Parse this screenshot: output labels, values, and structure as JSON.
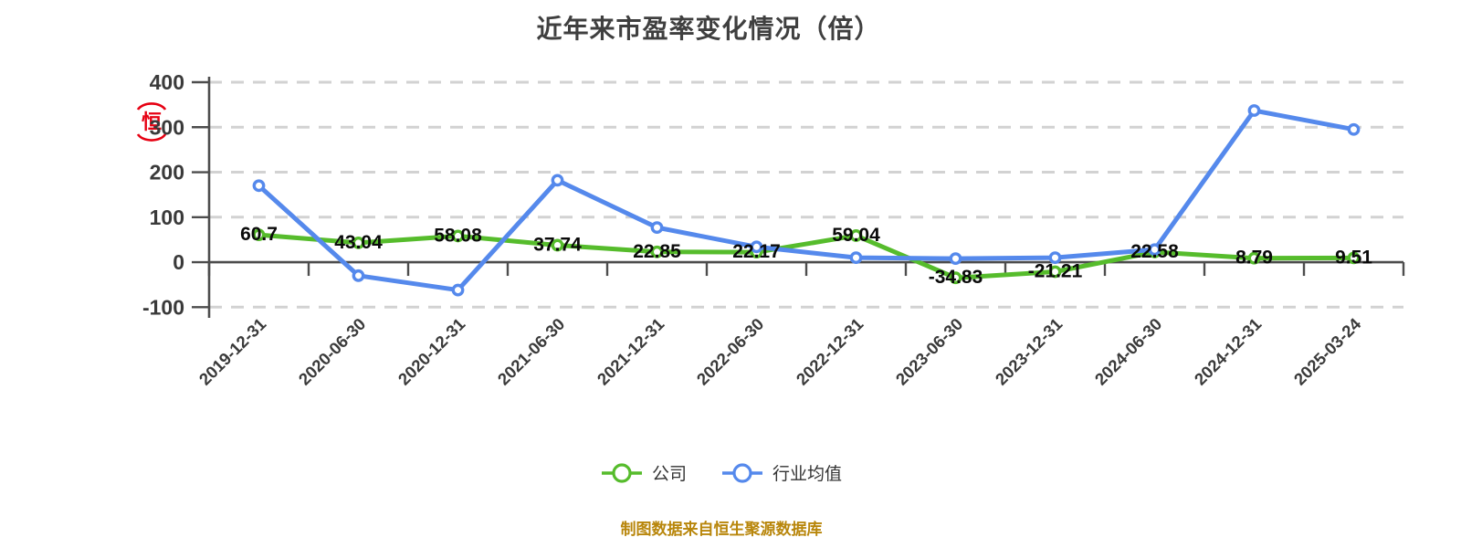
{
  "title": "近年来市盈率变化情况（倍）",
  "stamp": {
    "char": "恒",
    "color": "#e60012"
  },
  "footer": {
    "text": "制图数据来自恒生聚源数据库",
    "color": "#b8860b"
  },
  "legend": [
    {
      "label": "公司",
      "color": "#56bc2c"
    },
    {
      "label": "行业均值",
      "color": "#5589ec"
    }
  ],
  "chart_data": {
    "type": "line",
    "title": "近年来市盈率变化情况（倍）",
    "categories": [
      "2019-12-31",
      "2020-06-30",
      "2020-12-31",
      "2021-06-30",
      "2021-12-31",
      "2022-06-30",
      "2022-12-31",
      "2023-06-30",
      "2023-12-31",
      "2024-06-30",
      "2024-12-31",
      "2025-03-24"
    ],
    "series": [
      {
        "name": "公司",
        "color": "#56bc2c",
        "values": [
          60.7,
          43.04,
          58.08,
          37.74,
          22.85,
          22.17,
          59.04,
          -34.83,
          -21.21,
          22.58,
          8.79,
          9.51
        ],
        "data_labels_shown": true
      },
      {
        "name": "行业均值",
        "color": "#5589ec",
        "values": [
          170,
          -30,
          -62,
          182,
          77,
          34,
          10,
          8,
          10,
          28,
          337,
          295
        ],
        "data_labels_shown": false
      }
    ],
    "ylim": [
      -100,
      400
    ],
    "yticks": [
      400,
      300,
      200,
      100,
      0,
      -100
    ],
    "grid": "horizontal-dashed",
    "gridline_color": "#d2d2d2",
    "axis_color": "#4d4d4d",
    "tick_label_color": "#3a3a3a",
    "data_label_color": "#0a0a0a",
    "legend_position": "bottom",
    "x_label_rotation_deg": -45
  }
}
